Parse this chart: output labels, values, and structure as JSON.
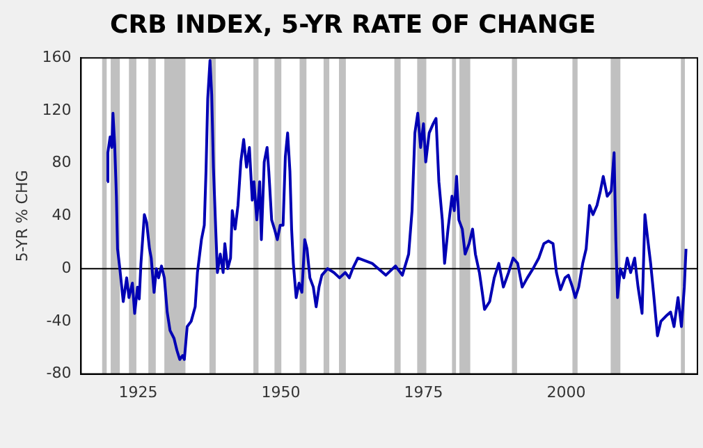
{
  "chart_data": {
    "type": "line",
    "title": "CRB INDEX, 5-YR RATE OF CHANGE",
    "ylabel": "5-YR % CHG",
    "xlim": [
      1915,
      2023
    ],
    "xticks": [
      1925,
      1950,
      1975,
      2000
    ],
    "ylim": [
      -80,
      160
    ],
    "yticks": [
      -80,
      -40,
      0,
      40,
      80,
      120,
      160
    ],
    "grid": false,
    "legend": false,
    "marker": "none",
    "line_style": "solid",
    "ref_lines": [
      {
        "axis": "y",
        "value": 0,
        "label": null,
        "color": "#000000"
      }
    ],
    "bands": [
      {
        "axis": "x",
        "from": 1918.7,
        "to": 1919.5,
        "label": null,
        "color": "#c0c0c0"
      },
      {
        "axis": "x",
        "from": 1920.2,
        "to": 1921.8,
        "label": null,
        "color": "#c0c0c0"
      },
      {
        "axis": "x",
        "from": 1923.4,
        "to": 1924.7,
        "label": null,
        "color": "#c0c0c0"
      },
      {
        "axis": "x",
        "from": 1926.8,
        "to": 1928.1,
        "label": null,
        "color": "#c0c0c0"
      },
      {
        "axis": "x",
        "from": 1929.6,
        "to": 1933.3,
        "label": null,
        "color": "#c0c0c0"
      },
      {
        "axis": "x",
        "from": 1937.5,
        "to": 1938.6,
        "label": null,
        "color": "#c0c0c0"
      },
      {
        "axis": "x",
        "from": 1945.2,
        "to": 1946.1,
        "label": null,
        "color": "#c0c0c0"
      },
      {
        "axis": "x",
        "from": 1948.9,
        "to": 1950.1,
        "label": null,
        "color": "#c0c0c0"
      },
      {
        "axis": "x",
        "from": 1953.3,
        "to": 1954.5,
        "label": null,
        "color": "#c0c0c0"
      },
      {
        "axis": "x",
        "from": 1957.5,
        "to": 1958.5,
        "label": null,
        "color": "#c0c0c0"
      },
      {
        "axis": "x",
        "from": 1960.2,
        "to": 1961.4,
        "label": null,
        "color": "#c0c0c0"
      },
      {
        "axis": "x",
        "from": 1969.9,
        "to": 1971.0,
        "label": null,
        "color": "#c0c0c0"
      },
      {
        "axis": "x",
        "from": 1973.9,
        "to": 1975.5,
        "label": null,
        "color": "#c0c0c0"
      },
      {
        "axis": "x",
        "from": 1980.0,
        "to": 1980.7,
        "label": null,
        "color": "#c0c0c0"
      },
      {
        "axis": "x",
        "from": 1981.3,
        "to": 1983.2,
        "label": null,
        "color": "#c0c0c0"
      },
      {
        "axis": "x",
        "from": 1990.5,
        "to": 1991.4,
        "label": null,
        "color": "#c0c0c0"
      },
      {
        "axis": "x",
        "from": 2001.1,
        "to": 2002.0,
        "label": null,
        "color": "#c0c0c0"
      },
      {
        "axis": "x",
        "from": 2007.8,
        "to": 2009.5,
        "label": null,
        "color": "#c0c0c0"
      },
      {
        "axis": "x",
        "from": 2020.1,
        "to": 2020.8,
        "label": null,
        "color": "#c0c0c0"
      }
    ],
    "series": [
      {
        "color": "#0000b4",
        "x": [
          1919.6,
          1919.7,
          1920.1,
          1920.4,
          1920.6,
          1920.9,
          1921.2,
          1921.4,
          1921.8,
          1922.4,
          1923.0,
          1923.4,
          1924.0,
          1924.4,
          1924.9,
          1925.2,
          1925.5,
          1926.1,
          1926.5,
          1927.0,
          1927.3,
          1927.8,
          1928.2,
          1928.6,
          1929.1,
          1929.6,
          1930.1,
          1930.6,
          1931.3,
          1931.8,
          1932.3,
          1932.8,
          1933.1,
          1933.6,
          1934.3,
          1935.0,
          1935.4,
          1936.1,
          1936.6,
          1936.9,
          1937.2,
          1937.6,
          1937.9,
          1938.2,
          1938.6,
          1938.9,
          1939.4,
          1939.9,
          1940.2,
          1940.7,
          1941.2,
          1941.5,
          1942.0,
          1942.5,
          1943.0,
          1943.5,
          1944.0,
          1944.5,
          1945.0,
          1945.3,
          1945.8,
          1946.3,
          1946.6,
          1947.1,
          1947.6,
          1947.9,
          1948.4,
          1948.9,
          1949.4,
          1949.9,
          1950.4,
          1950.8,
          1951.2,
          1951.6,
          1951.9,
          1952.2,
          1952.7,
          1953.2,
          1953.7,
          1954.2,
          1954.6,
          1955.1,
          1955.7,
          1956.2,
          1956.7,
          1957.2,
          1958.2,
          1959.3,
          1960.3,
          1961.3,
          1962.0,
          1962.6,
          1963.5,
          1966.0,
          1968.4,
          1970.1,
          1971.3,
          1972.4,
          1973.0,
          1973.5,
          1974.0,
          1974.5,
          1975.0,
          1975.4,
          1976.0,
          1976.7,
          1977.2,
          1977.7,
          1978.3,
          1978.7,
          1979.3,
          1980.0,
          1980.4,
          1980.8,
          1981.2,
          1981.8,
          1982.3,
          1983.0,
          1983.6,
          1984.1,
          1984.8,
          1985.3,
          1985.7,
          1986.6,
          1987.4,
          1988.2,
          1989.0,
          1989.9,
          1990.7,
          1991.5,
          1992.3,
          1993.2,
          1994.2,
          1995.2,
          1996.1,
          1996.9,
          1997.7,
          1998.3,
          1999.0,
          1999.8,
          2000.4,
          2001.1,
          2001.6,
          2002.2,
          2002.9,
          2003.5,
          2004.1,
          2004.7,
          2005.4,
          2006.0,
          2006.5,
          2007.2,
          2007.9,
          2008.4,
          2008.7,
          2009.0,
          2009.5,
          2010.1,
          2010.7,
          2011.3,
          2012.0,
          2012.6,
          2013.3,
          2013.8,
          2014.3,
          2014.8,
          2015.3,
          2016.0,
          2016.6,
          2017.5,
          2018.3,
          2018.9,
          2019.6,
          2020.2,
          2020.7,
          2021.0
        ],
        "values": [
          66,
          88,
          100,
          92,
          118,
          94,
          55,
          15,
          0,
          -25,
          -7,
          -22,
          -11,
          -34,
          -14,
          -23,
          4,
          41,
          35,
          15,
          8,
          -18,
          0,
          -7,
          2,
          -7,
          -33,
          -47,
          -53,
          -62,
          -69,
          -66,
          -69,
          -44,
          -40,
          -29,
          -3,
          22,
          33,
          74,
          129,
          158,
          132,
          77,
          30,
          -3,
          11,
          -3,
          19,
          0,
          8,
          44,
          30,
          48,
          81,
          98,
          77,
          92,
          52,
          66,
          37,
          66,
          22,
          81,
          92,
          74,
          37,
          30,
          22,
          33,
          33,
          85,
          103,
          74,
          30,
          4,
          -22,
          -11,
          -18,
          22,
          15,
          -7,
          -14,
          -29,
          -14,
          -5,
          0,
          -3,
          -7,
          -3,
          -7,
          0,
          8,
          4,
          -5,
          2,
          -5,
          11,
          44,
          103,
          118,
          92,
          110,
          81,
          103,
          110,
          114,
          66,
          37,
          4,
          30,
          55,
          44,
          70,
          37,
          30,
          11,
          19,
          30,
          11,
          -3,
          -18,
          -31,
          -25,
          -7,
          4,
          -14,
          -3,
          8,
          4,
          -14,
          -7,
          0,
          8,
          19,
          21,
          19,
          -3,
          -16,
          -7,
          -5,
          -14,
          -22,
          -14,
          4,
          15,
          48,
          41,
          48,
          59,
          70,
          55,
          59,
          88,
          22,
          -22,
          0,
          -7,
          8,
          -3,
          8,
          -14,
          -34,
          41,
          22,
          4,
          -18,
          -51,
          -40,
          -36,
          -33,
          -44,
          -22,
          -44,
          -14,
          15
        ]
      }
    ]
  }
}
